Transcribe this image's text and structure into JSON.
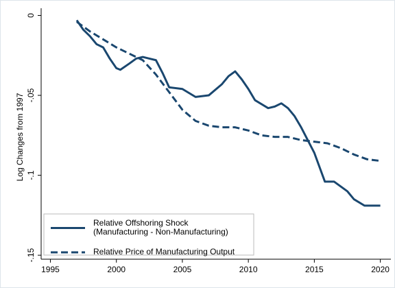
{
  "chart_data": {
    "type": "line",
    "y_label": "Log Changes from 1997",
    "xlim": [
      1994.3,
      2020.8
    ],
    "xticks": [
      1995,
      2000,
      2005,
      2010,
      2015,
      2020
    ],
    "ylim": [
      -0.1525,
      0.0045
    ],
    "yticks": [
      0,
      {
        "value": -0.05,
        "label": "-.05"
      },
      {
        "value": -0.1,
        "label": "-.1"
      },
      {
        "value": -0.15,
        "label": "-.15"
      }
    ],
    "legend": "bottom-left",
    "series": [
      {
        "name": [
          "Relative Offshoring Shock",
          "(Manufacturing - Non-Manufacturing)"
        ],
        "color": "#1a476f",
        "dash": false,
        "x": [
          1997,
          1997.5,
          1998,
          1998.5,
          1999,
          1999.5,
          2000,
          2000.3,
          2001,
          2001.5,
          2002,
          2002.5,
          2003,
          2003.5,
          2004,
          2005,
          2006,
          2007,
          2008,
          2008.5,
          2009,
          2009.5,
          2010,
          2010.5,
          2011.5,
          2012,
          2012.5,
          2013,
          2013.5,
          2014,
          2015,
          2015.8,
          2016.5,
          2017.5,
          2018,
          2018.8,
          2020
        ],
        "values": [
          -0.003,
          -0.009,
          -0.013,
          -0.018,
          -0.02,
          -0.027,
          -0.033,
          -0.034,
          -0.03,
          -0.027,
          -0.026,
          -0.027,
          -0.028,
          -0.036,
          -0.045,
          -0.046,
          -0.051,
          -0.05,
          -0.043,
          -0.038,
          -0.035,
          -0.04,
          -0.046,
          -0.053,
          -0.058,
          -0.057,
          -0.055,
          -0.058,
          -0.063,
          -0.07,
          -0.086,
          -0.104,
          -0.104,
          -0.11,
          -0.115,
          -0.119,
          -0.119
        ]
      },
      {
        "name": [
          "Relative Price of Manufacturing Output"
        ],
        "color": "#1a476f",
        "dash": true,
        "x": [
          1997,
          1998,
          1999,
          2000,
          2001,
          2002,
          2003,
          2004,
          2005,
          2006,
          2007,
          2008,
          2009,
          2010,
          2011,
          2012,
          2013,
          2014,
          2015,
          2016,
          2017,
          2018,
          2019,
          2020
        ],
        "values": [
          -0.004,
          -0.01,
          -0.015,
          -0.02,
          -0.024,
          -0.028,
          -0.037,
          -0.048,
          -0.059,
          -0.066,
          -0.069,
          -0.07,
          -0.07,
          -0.072,
          -0.075,
          -0.076,
          -0.076,
          -0.078,
          -0.079,
          -0.08,
          -0.083,
          -0.087,
          -0.09,
          -0.091
        ]
      }
    ]
  }
}
